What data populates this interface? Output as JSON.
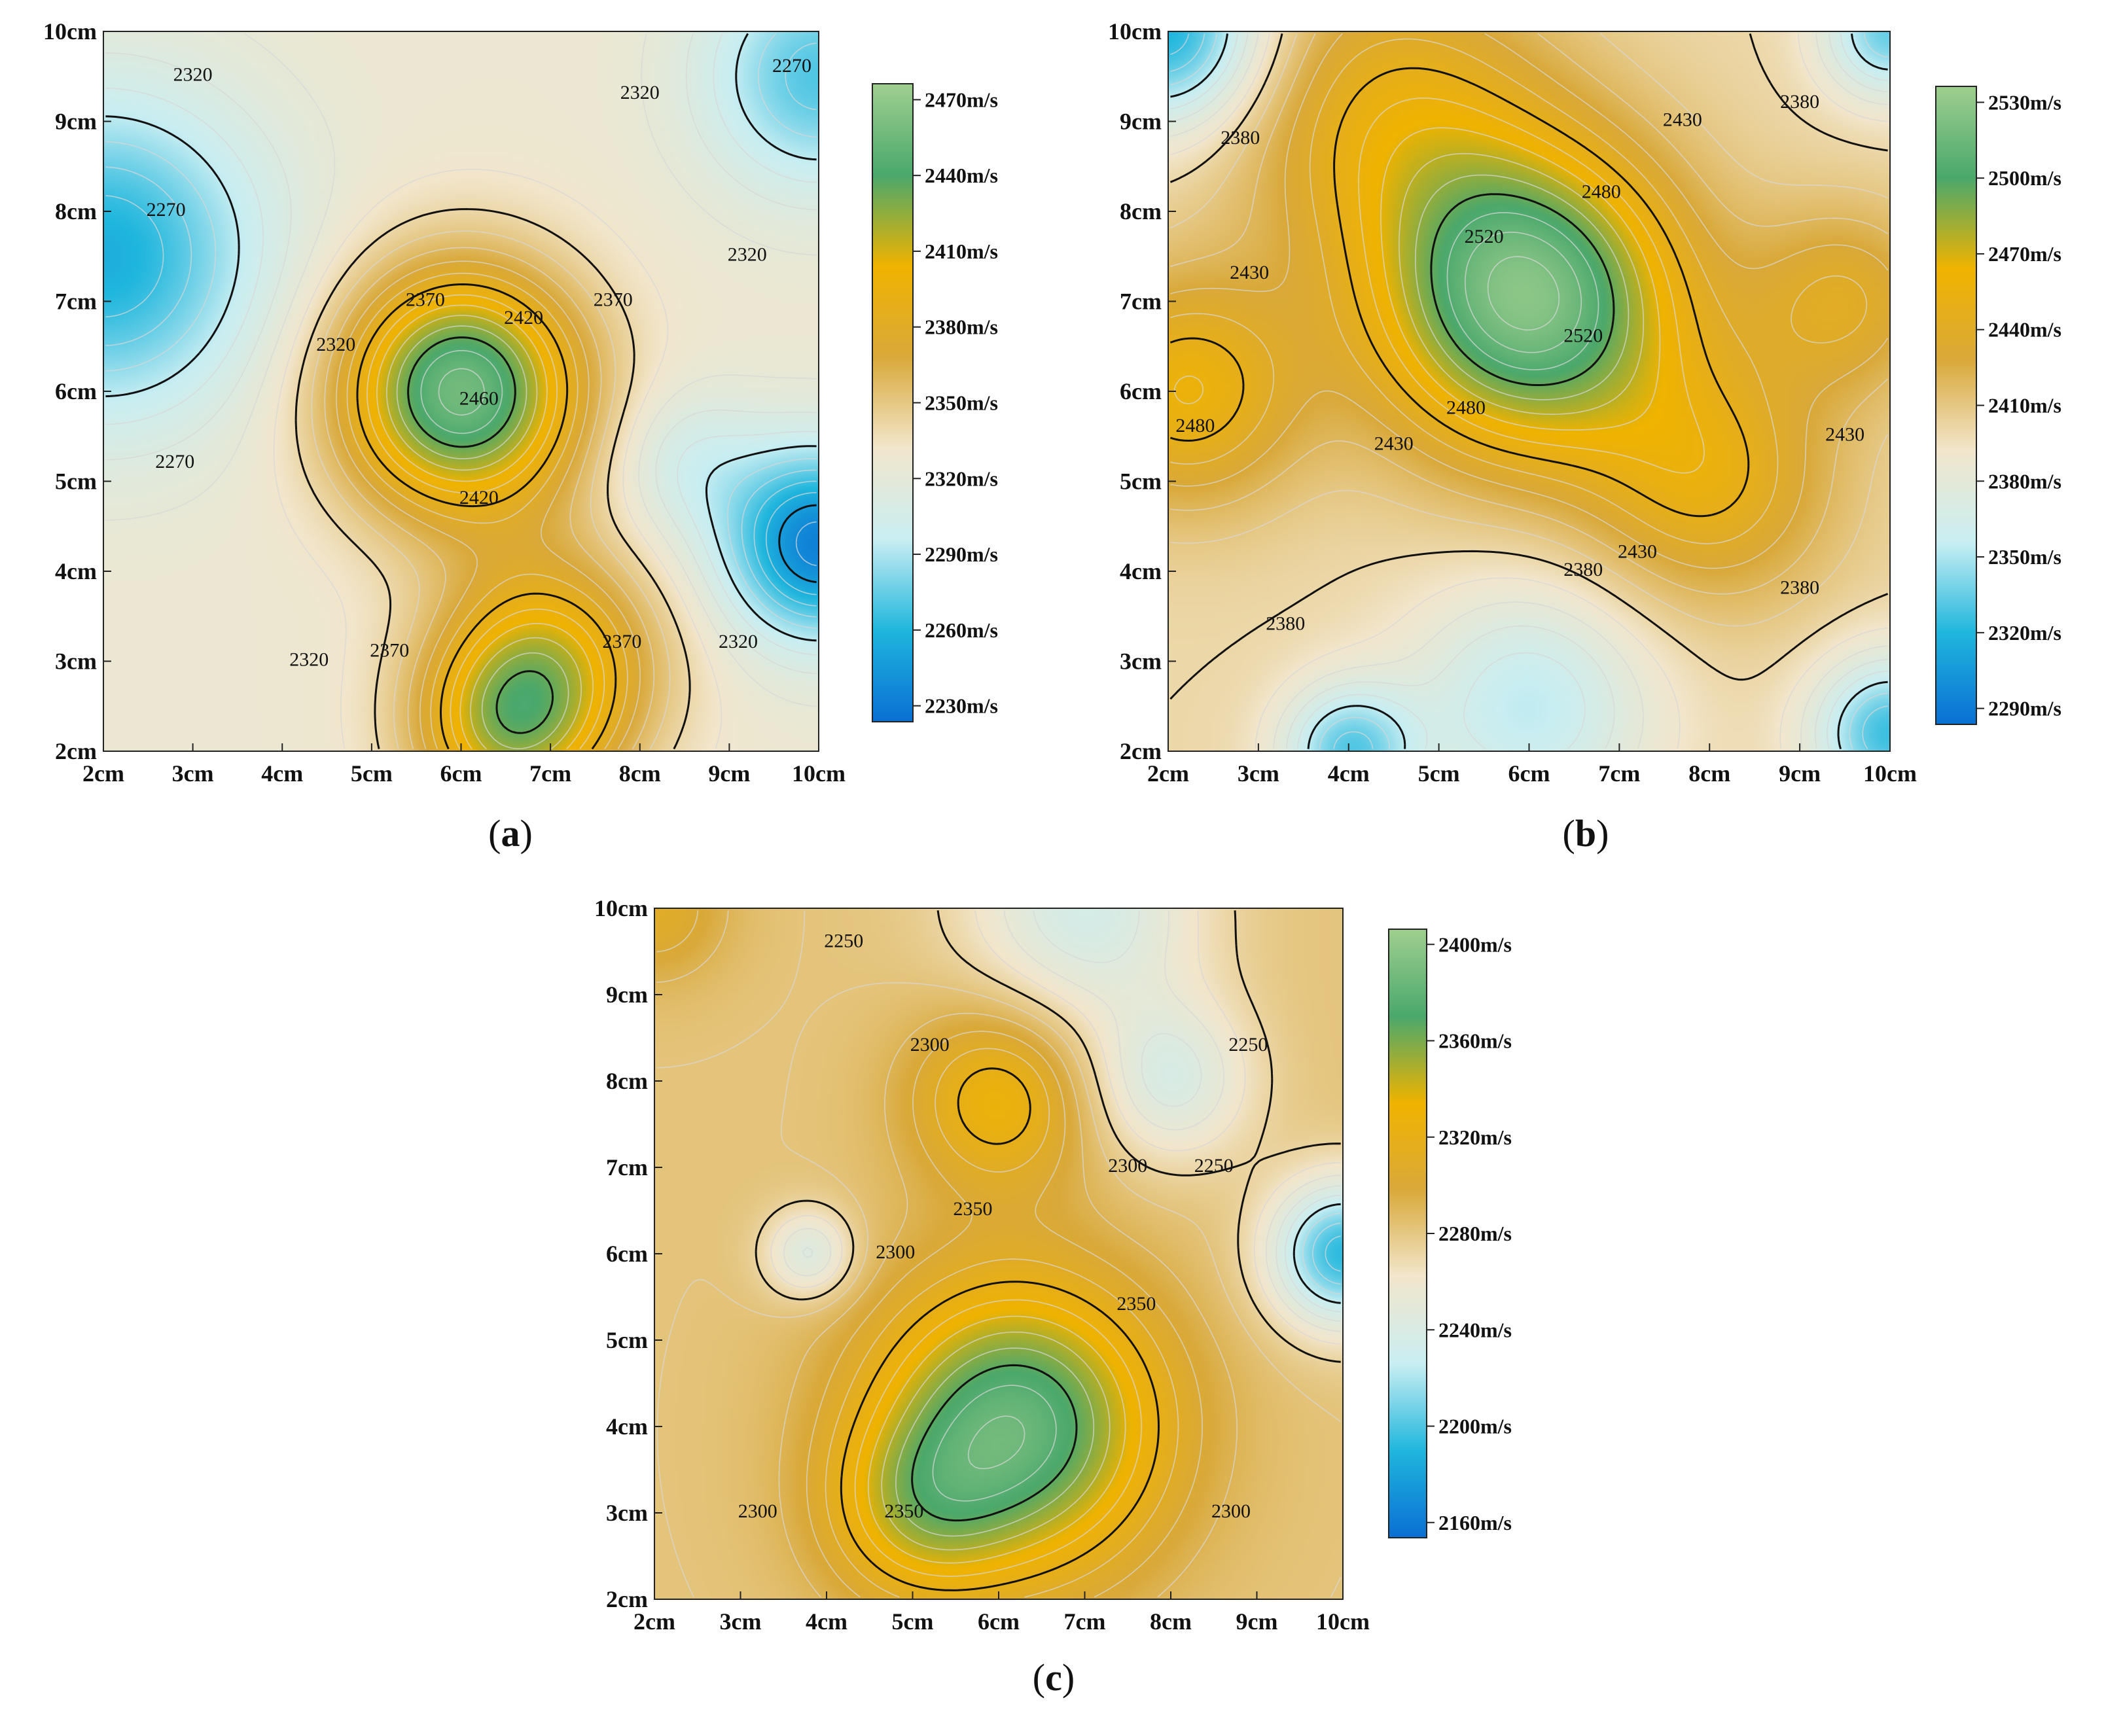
{
  "chart_data": [
    {
      "type": "heatmap",
      "subtype": "contour",
      "panel_label": "a",
      "x_tick_labels": [
        "2cm",
        "3cm",
        "4cm",
        "5cm",
        "6cm",
        "7cm",
        "8cm",
        "9cm",
        "10cm"
      ],
      "y_tick_labels": [
        "10cm",
        "9cm",
        "8cm",
        "7cm",
        "6cm",
        "5cm",
        "4cm",
        "3cm",
        "2cm"
      ],
      "xlim": [
        2,
        10
      ],
      "ylim": [
        2,
        10
      ],
      "colorbar": {
        "labels": [
          "2470m/s",
          "2440m/s",
          "2410m/s",
          "2380m/s",
          "2350m/s",
          "2320m/s",
          "2290m/s",
          "2260m/s",
          "2230m/s"
        ],
        "range": [
          2215,
          2485
        ]
      },
      "colormap": [
        "#0a6fd4",
        "#1fb6dd",
        "#c9eef2",
        "#f2e6cc",
        "#d9a93a",
        "#f0b300",
        "#4aa86c",
        "#9fcf8f"
      ],
      "peaks": [
        {
          "x": 6.0,
          "y": 6.0,
          "value": 2465,
          "r": 1.3
        },
        {
          "x": 7.0,
          "y": 3.0,
          "value": 2400,
          "r": 1.2
        },
        {
          "x": 6.5,
          "y": 2.2,
          "value": 2395,
          "r": 1.0
        },
        {
          "x": 2.0,
          "y": 7.5,
          "value": 2250,
          "r": 1.7
        },
        {
          "x": 10.0,
          "y": 4.3,
          "value": 2225,
          "r": 1.0
        },
        {
          "x": 10.0,
          "y": 9.5,
          "value": 2265,
          "r": 1.2
        },
        {
          "x": 8.5,
          "y": 5.2,
          "value": 2300,
          "r": 0.8
        }
      ],
      "base_value": 2325,
      "contour_labels": [
        {
          "x": 3.0,
          "y": 9.5,
          "text": "2320"
        },
        {
          "x": 2.7,
          "y": 8.0,
          "text": "2270"
        },
        {
          "x": 2.8,
          "y": 5.2,
          "text": "2270"
        },
        {
          "x": 4.6,
          "y": 6.5,
          "text": "2320"
        },
        {
          "x": 4.3,
          "y": 3.0,
          "text": "2320"
        },
        {
          "x": 5.2,
          "y": 3.1,
          "text": "2370"
        },
        {
          "x": 5.6,
          "y": 7.0,
          "text": "2370"
        },
        {
          "x": 6.7,
          "y": 6.8,
          "text": "2420"
        },
        {
          "x": 6.2,
          "y": 5.9,
          "text": "2460"
        },
        {
          "x": 6.2,
          "y": 4.8,
          "text": "2420"
        },
        {
          "x": 7.7,
          "y": 7.0,
          "text": "2370"
        },
        {
          "x": 7.8,
          "y": 3.2,
          "text": "2370"
        },
        {
          "x": 8.0,
          "y": 9.3,
          "text": "2320"
        },
        {
          "x": 9.2,
          "y": 7.5,
          "text": "2320"
        },
        {
          "x": 9.1,
          "y": 3.2,
          "text": "2320"
        },
        {
          "x": 9.7,
          "y": 9.6,
          "text": "2270"
        }
      ]
    },
    {
      "type": "heatmap",
      "subtype": "contour",
      "panel_label": "b",
      "x_tick_labels": [
        "2cm",
        "3cm",
        "4cm",
        "5cm",
        "6cm",
        "7cm",
        "8cm",
        "9cm",
        "10cm"
      ],
      "y_tick_labels": [
        "10cm",
        "9cm",
        "8cm",
        "7cm",
        "6cm",
        "5cm",
        "4cm",
        "3cm",
        "2cm"
      ],
      "xlim": [
        2,
        10
      ],
      "ylim": [
        2,
        10
      ],
      "colorbar": {
        "labels": [
          "2530m/s",
          "2500m/s",
          "2470m/s",
          "2440m/s",
          "2410m/s",
          "2380m/s",
          "2350m/s",
          "2320m/s",
          "2290m/s"
        ],
        "range": [
          2275,
          2545
        ]
      },
      "colormap": [
        "#0a6fd4",
        "#1fb6dd",
        "#c9eef2",
        "#f2e6cc",
        "#d9a93a",
        "#f0b300",
        "#4aa86c",
        "#9fcf8f"
      ],
      "peaks": [
        {
          "x": 6.0,
          "y": 7.0,
          "value": 2530,
          "r": 1.6
        },
        {
          "x": 4.5,
          "y": 9.0,
          "value": 2450,
          "r": 1.6
        },
        {
          "x": 8.0,
          "y": 5.0,
          "value": 2450,
          "r": 1.3
        },
        {
          "x": 2.2,
          "y": 6.0,
          "value": 2460,
          "r": 1.2
        },
        {
          "x": 9.5,
          "y": 7.0,
          "value": 2440,
          "r": 1.0
        },
        {
          "x": 2.0,
          "y": 10.0,
          "value": 2310,
          "r": 1.0
        },
        {
          "x": 10.0,
          "y": 10.0,
          "value": 2330,
          "r": 0.7
        },
        {
          "x": 6.0,
          "y": 2.5,
          "value": 2350,
          "r": 1.3
        },
        {
          "x": 10.0,
          "y": 2.2,
          "value": 2320,
          "r": 0.8
        },
        {
          "x": 4.0,
          "y": 2.0,
          "value": 2330,
          "r": 0.7
        }
      ],
      "base_value": 2400,
      "contour_labels": [
        {
          "x": 2.8,
          "y": 8.8,
          "text": "2380"
        },
        {
          "x": 2.9,
          "y": 7.3,
          "text": "2430"
        },
        {
          "x": 2.3,
          "y": 5.6,
          "text": "2480"
        },
        {
          "x": 4.5,
          "y": 5.4,
          "text": "2430"
        },
        {
          "x": 3.3,
          "y": 3.4,
          "text": "2380"
        },
        {
          "x": 5.3,
          "y": 5.8,
          "text": "2480"
        },
        {
          "x": 5.5,
          "y": 7.7,
          "text": "2520"
        },
        {
          "x": 6.6,
          "y": 6.6,
          "text": "2520"
        },
        {
          "x": 6.8,
          "y": 8.2,
          "text": "2480"
        },
        {
          "x": 7.7,
          "y": 9.0,
          "text": "2430"
        },
        {
          "x": 9.0,
          "y": 9.2,
          "text": "2380"
        },
        {
          "x": 9.5,
          "y": 5.5,
          "text": "2430"
        },
        {
          "x": 9.0,
          "y": 3.8,
          "text": "2380"
        },
        {
          "x": 7.2,
          "y": 4.2,
          "text": "2430"
        },
        {
          "x": 6.6,
          "y": 4.0,
          "text": "2380"
        }
      ]
    },
    {
      "type": "heatmap",
      "subtype": "contour",
      "panel_label": "c",
      "x_tick_labels": [
        "2cm",
        "3cm",
        "4cm",
        "5cm",
        "6cm",
        "7cm",
        "8cm",
        "9cm",
        "10cm"
      ],
      "y_tick_labels": [
        "10cm",
        "9cm",
        "8cm",
        "7cm",
        "6cm",
        "5cm",
        "4cm",
        "3cm",
        "2cm"
      ],
      "xlim": [
        2,
        10
      ],
      "ylim": [
        2,
        10
      ],
      "colorbar": {
        "labels": [
          "2400m/s",
          "2360m/s",
          "2320m/s",
          "2280m/s",
          "2240m/s",
          "2200m/s",
          "2160m/s"
        ],
        "range": [
          2150,
          2410
        ]
      },
      "colormap": [
        "#0a6fd4",
        "#1fb6dd",
        "#c9eef2",
        "#f2e6cc",
        "#d9a93a",
        "#f0b300",
        "#4aa86c",
        "#9fcf8f"
      ],
      "peaks": [
        {
          "x": 6.2,
          "y": 4.0,
          "value": 2385,
          "r": 1.6
        },
        {
          "x": 6.0,
          "y": 7.8,
          "value": 2330,
          "r": 1.0
        },
        {
          "x": 5.0,
          "y": 3.0,
          "value": 2320,
          "r": 1.0
        },
        {
          "x": 7.0,
          "y": 10.0,
          "value": 2235,
          "r": 1.3
        },
        {
          "x": 8.0,
          "y": 8.0,
          "value": 2240,
          "r": 0.9
        },
        {
          "x": 10.0,
          "y": 6.0,
          "value": 2190,
          "r": 0.8
        },
        {
          "x": 3.8,
          "y": 6.0,
          "value": 2240,
          "r": 0.5
        },
        {
          "x": 2.0,
          "y": 10.0,
          "value": 2310,
          "r": 0.8
        }
      ],
      "base_value": 2282,
      "contour_labels": [
        {
          "x": 4.2,
          "y": 9.6,
          "text": "2250"
        },
        {
          "x": 5.2,
          "y": 8.4,
          "text": "2300"
        },
        {
          "x": 4.8,
          "y": 6.0,
          "text": "2300"
        },
        {
          "x": 5.7,
          "y": 6.5,
          "text": "2350"
        },
        {
          "x": 3.2,
          "y": 3.0,
          "text": "2300"
        },
        {
          "x": 4.9,
          "y": 3.0,
          "text": "2350"
        },
        {
          "x": 7.5,
          "y": 7.0,
          "text": "2300"
        },
        {
          "x": 7.6,
          "y": 5.4,
          "text": "2350"
        },
        {
          "x": 8.9,
          "y": 8.4,
          "text": "2250"
        },
        {
          "x": 8.5,
          "y": 7.0,
          "text": "2250"
        },
        {
          "x": 8.7,
          "y": 3.0,
          "text": "2300"
        }
      ]
    }
  ]
}
